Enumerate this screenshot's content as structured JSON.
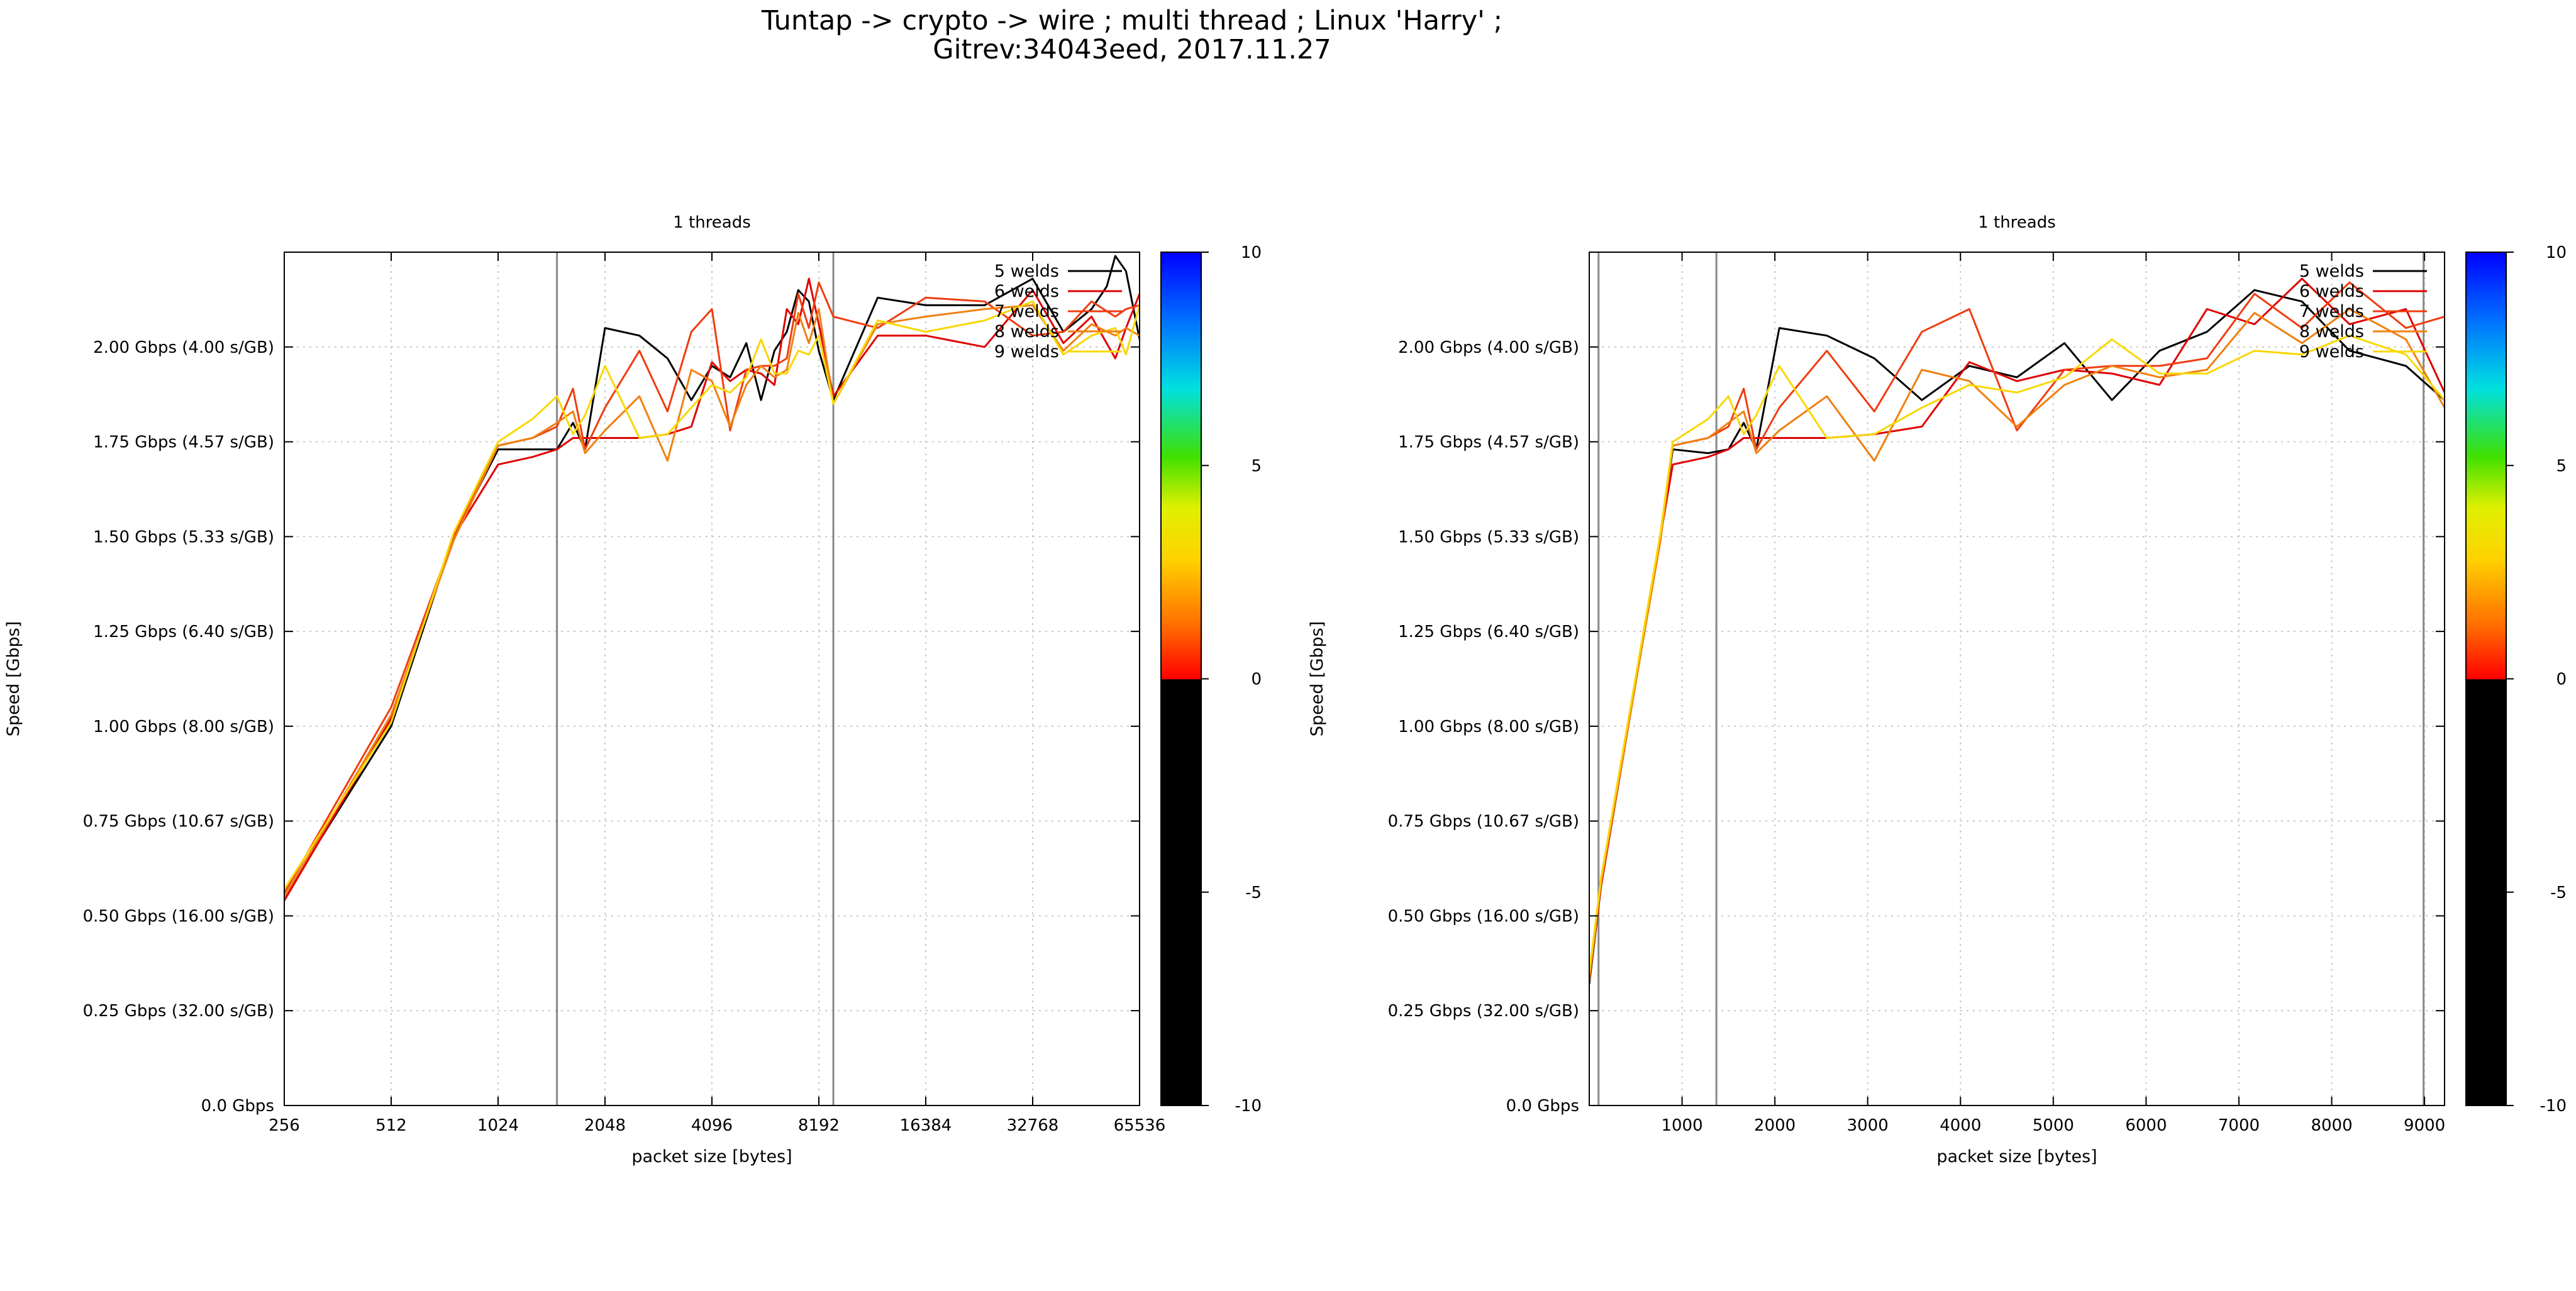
{
  "figure": {
    "title_line1": "Tuntap -> crypto -> wire ; multi thread ; Linux 'Harry' ;",
    "title_line2": "Gitrev:34043eed, 2017.11.27"
  },
  "colors": {
    "5 welds": "#000000",
    "6 welds": "#e00000",
    "7 welds": "#f03c10",
    "8 welds": "#f08010",
    "9 welds": "#f8d800",
    "grid": "#c8c8c8",
    "reference_lines": "#888888"
  },
  "colorbar": {
    "ticks": [
      "10",
      "5",
      "0",
      "-5",
      "-10"
    ],
    "range": [
      -10,
      10
    ],
    "palette": [
      "#000000 below 0",
      "red at 0",
      "orange",
      "yellow",
      "green",
      "cyan",
      "blue at 10"
    ]
  },
  "chart_data": [
    {
      "type": "line",
      "title": "1 threads",
      "xlabel": "packet size [bytes]",
      "ylabel": "Speed [Gbps]",
      "xscale": "log2",
      "xlim": [
        256,
        65536
      ],
      "ylim": [
        0,
        2.25
      ],
      "grid": true,
      "legend_position": "top-right",
      "xticks": [
        256,
        512,
        1024,
        2048,
        4096,
        8192,
        16384,
        32768,
        65536
      ],
      "xtick_labels": [
        "256",
        "512",
        "1024",
        "2048",
        "4096",
        "8192",
        "16384",
        "32768",
        "65536"
      ],
      "yticks": [
        0,
        0.25,
        0.5,
        0.75,
        1.0,
        1.25,
        1.5,
        1.75,
        2.0
      ],
      "ytick_labels": [
        "0.0 Gbps",
        "0.25 Gbps (32.00 s/GB)",
        "0.50 Gbps (16.00 s/GB)",
        "0.75 Gbps (10.67 s/GB)",
        "1.00 Gbps (8.00 s/GB)",
        "1.25 Gbps (6.40 s/GB)",
        "1.50 Gbps (5.33 s/GB)",
        "1.75 Gbps (4.57 s/GB)",
        "2.00 Gbps (4.00 s/GB)"
      ],
      "reference_lines_x": [
        1500,
        9000
      ],
      "series": [
        {
          "name": "5 welds",
          "x": [
            256,
            512,
            768,
            1024,
            1280,
            1500,
            1664,
            1800,
            2048,
            2560,
            3072,
            3584,
            4096,
            4608,
            5120,
            5632,
            6144,
            6656,
            7168,
            7680,
            8192,
            9000,
            12000,
            16384,
            24000,
            32768,
            40000,
            48000,
            53000,
            56000,
            60000,
            65536
          ],
          "y": [
            0.55,
            1.0,
            1.5,
            1.73,
            1.73,
            1.73,
            1.8,
            1.73,
            2.05,
            2.03,
            1.97,
            1.86,
            1.95,
            1.92,
            2.01,
            1.86,
            1.99,
            2.04,
            2.15,
            2.12,
            1.99,
            1.86,
            2.13,
            2.11,
            2.11,
            2.18,
            2.04,
            2.1,
            2.16,
            2.24,
            2.2,
            2.02
          ]
        },
        {
          "name": "6 welds",
          "x": [
            256,
            512,
            768,
            1024,
            1280,
            1500,
            1664,
            1800,
            2048,
            2560,
            3072,
            3584,
            4096,
            4608,
            5120,
            5632,
            6144,
            6656,
            7168,
            7680,
            8192,
            9000,
            12000,
            16384,
            24000,
            32768,
            40000,
            48000,
            56000,
            60000,
            65536
          ],
          "y": [
            0.54,
            1.02,
            1.5,
            1.69,
            1.71,
            1.73,
            1.76,
            1.76,
            1.76,
            1.76,
            1.77,
            1.79,
            1.96,
            1.91,
            1.94,
            1.93,
            1.9,
            2.1,
            2.06,
            2.18,
            2.06,
            1.87,
            2.03,
            2.03,
            2.0,
            2.15,
            2.01,
            2.08,
            1.97,
            2.05,
            2.14
          ]
        },
        {
          "name": "7 welds",
          "x": [
            256,
            512,
            768,
            1024,
            1280,
            1500,
            1664,
            1800,
            2048,
            2560,
            3072,
            3584,
            4096,
            4608,
            5120,
            5632,
            6144,
            6656,
            7168,
            7680,
            8192,
            9000,
            12000,
            16384,
            24000,
            32768,
            40000,
            48000,
            56000,
            60000,
            65536
          ],
          "y": [
            0.56,
            1.05,
            1.5,
            1.74,
            1.76,
            1.79,
            1.89,
            1.73,
            1.84,
            1.99,
            1.83,
            2.04,
            2.1,
            1.78,
            1.94,
            1.95,
            1.95,
            1.97,
            2.14,
            2.05,
            2.17,
            2.08,
            2.05,
            2.13,
            2.12,
            2.03,
            2.04,
            2.12,
            2.08,
            2.1,
            2.11
          ]
        },
        {
          "name": "8 welds",
          "x": [
            256,
            512,
            768,
            1024,
            1280,
            1500,
            1664,
            1800,
            2048,
            2560,
            3072,
            3584,
            4096,
            4608,
            5120,
            5632,
            6144,
            6656,
            7168,
            7680,
            8192,
            9000,
            12000,
            16384,
            24000,
            32768,
            40000,
            48000,
            56000,
            60000,
            65536
          ],
          "y": [
            0.55,
            1.03,
            1.49,
            1.74,
            1.76,
            1.8,
            1.83,
            1.72,
            1.78,
            1.87,
            1.7,
            1.94,
            1.91,
            1.79,
            1.9,
            1.95,
            1.92,
            1.94,
            2.09,
            2.01,
            2.1,
            1.85,
            2.06,
            2.08,
            2.1,
            2.11,
            1.99,
            2.06,
            2.03,
            2.05,
            2.03
          ]
        },
        {
          "name": "9 welds",
          "x": [
            256,
            512,
            768,
            1024,
            1280,
            1500,
            1664,
            1800,
            2048,
            2560,
            3072,
            3584,
            4096,
            4608,
            5120,
            5632,
            6144,
            6656,
            7168,
            7680,
            8192,
            9000,
            12000,
            16384,
            24000,
            32768,
            40000,
            48000,
            56000,
            60000,
            65536
          ],
          "y": [
            0.57,
            1.01,
            1.51,
            1.75,
            1.81,
            1.87,
            1.77,
            1.82,
            1.95,
            1.76,
            1.77,
            1.84,
            1.9,
            1.88,
            1.92,
            2.02,
            1.93,
            1.93,
            1.99,
            1.98,
            2.03,
            1.85,
            2.07,
            2.04,
            2.07,
            2.12,
            1.98,
            2.03,
            2.05,
            1.98,
            2.11
          ]
        }
      ]
    },
    {
      "type": "line",
      "title": "1 threads",
      "xlabel": "packet size [bytes]",
      "ylabel": "Speed [Gbps]",
      "xscale": "linear",
      "xlim": [
        0,
        9216
      ],
      "ylim": [
        0,
        2.25
      ],
      "grid": true,
      "legend_position": "top-right",
      "xticks": [
        1000,
        2000,
        3000,
        4000,
        5000,
        6000,
        7000,
        8000,
        9000
      ],
      "xtick_labels": [
        "1000",
        "2000",
        "3000",
        "4000",
        "5000",
        "6000",
        "7000",
        "8000",
        "9000"
      ],
      "yticks": [
        0,
        0.25,
        0.5,
        0.75,
        1.0,
        1.25,
        1.5,
        1.75,
        2.0
      ],
      "ytick_labels": [
        "0.0 Gbps",
        "0.25 Gbps (32.00 s/GB)",
        "0.50 Gbps (16.00 s/GB)",
        "0.75 Gbps (10.67 s/GB)",
        "1.00 Gbps (8.00 s/GB)",
        "1.25 Gbps (6.40 s/GB)",
        "1.50 Gbps (5.33 s/GB)",
        "1.75 Gbps (4.57 s/GB)",
        "2.00 Gbps (4.00 s/GB)"
      ],
      "reference_lines_x": [
        100,
        1370,
        8990
      ],
      "series": [
        {
          "name": "5 welds",
          "x": [
            0,
            128,
            768,
            900,
            1280,
            1500,
            1664,
            1800,
            2048,
            2560,
            3072,
            3584,
            4096,
            4608,
            5120,
            5632,
            6144,
            6656,
            7168,
            7680,
            8192,
            8800,
            9216
          ],
          "y": [
            0.32,
            0.58,
            1.5,
            1.73,
            1.72,
            1.73,
            1.8,
            1.73,
            2.05,
            2.03,
            1.97,
            1.86,
            1.95,
            1.92,
            2.01,
            1.86,
            1.99,
            2.04,
            2.15,
            2.12,
            1.99,
            1.95,
            1.86
          ]
        },
        {
          "name": "6 welds",
          "x": [
            0,
            128,
            768,
            900,
            1280,
            1500,
            1664,
            1800,
            2048,
            2560,
            3072,
            3584,
            4096,
            4608,
            5120,
            5632,
            6144,
            6656,
            7168,
            7680,
            8192,
            8800,
            9216
          ],
          "y": [
            0.33,
            0.58,
            1.5,
            1.69,
            1.71,
            1.73,
            1.76,
            1.76,
            1.76,
            1.76,
            1.77,
            1.79,
            1.96,
            1.91,
            1.94,
            1.93,
            1.9,
            2.1,
            2.06,
            2.18,
            2.06,
            2.1,
            1.88
          ]
        },
        {
          "name": "7 welds",
          "x": [
            0,
            128,
            768,
            900,
            1280,
            1500,
            1664,
            1800,
            2048,
            2560,
            3072,
            3584,
            4096,
            4608,
            5120,
            5632,
            6144,
            6656,
            7168,
            7680,
            8192,
            8800,
            9216
          ],
          "y": [
            0.34,
            0.6,
            1.5,
            1.74,
            1.76,
            1.79,
            1.89,
            1.73,
            1.84,
            1.99,
            1.83,
            2.04,
            2.1,
            1.78,
            1.94,
            1.95,
            1.95,
            1.97,
            2.14,
            2.05,
            2.17,
            2.05,
            2.08
          ]
        },
        {
          "name": "8 welds",
          "x": [
            0,
            128,
            768,
            900,
            1280,
            1500,
            1664,
            1800,
            2048,
            2560,
            3072,
            3584,
            4096,
            4608,
            5120,
            5632,
            6144,
            6656,
            7168,
            7680,
            8192,
            8800,
            9216
          ],
          "y": [
            0.33,
            0.59,
            1.49,
            1.74,
            1.76,
            1.8,
            1.83,
            1.72,
            1.78,
            1.87,
            1.7,
            1.94,
            1.91,
            1.79,
            1.9,
            1.95,
            1.92,
            1.94,
            2.09,
            2.01,
            2.1,
            2.02,
            1.84
          ]
        },
        {
          "name": "9 welds",
          "x": [
            0,
            128,
            768,
            900,
            1280,
            1500,
            1664,
            1800,
            2048,
            2560,
            3072,
            3584,
            4096,
            4608,
            5120,
            5632,
            6144,
            6656,
            7168,
            7680,
            8192,
            8800,
            9216
          ],
          "y": [
            0.35,
            0.6,
            1.51,
            1.75,
            1.81,
            1.87,
            1.77,
            1.82,
            1.95,
            1.76,
            1.77,
            1.84,
            1.9,
            1.88,
            1.92,
            2.02,
            1.93,
            1.93,
            1.99,
            1.98,
            2.03,
            1.98,
            1.86
          ]
        }
      ]
    }
  ]
}
